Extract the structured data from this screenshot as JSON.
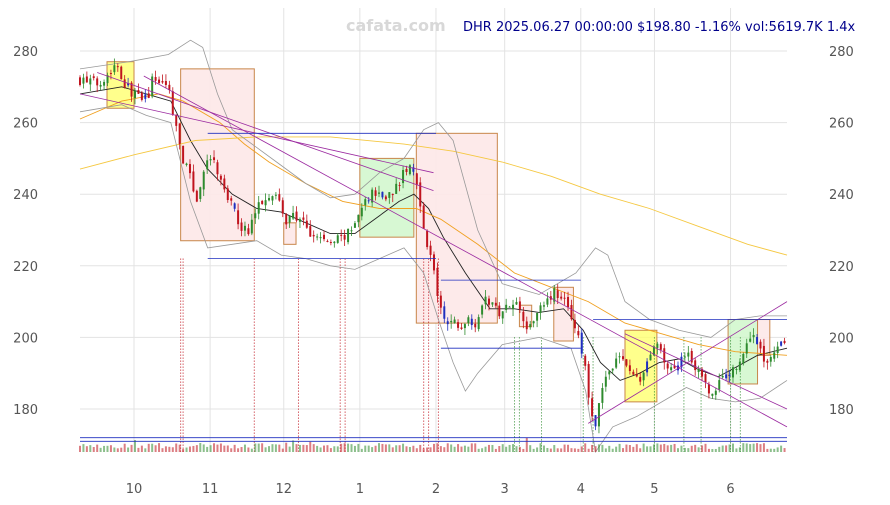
{
  "watermark": "cafata.com",
  "header": "DHR 2025.06.27 00:00:00 $198.80 -1.16% vol:5619.7K 1.4x",
  "colors": {
    "up": "#2e8b2e",
    "down": "#c0141e",
    "blue": "#1f2fbf",
    "sma_short": "#222222",
    "sma_mid": "#f0a020",
    "sma_long": "#f5c842",
    "bollinger": "#999999",
    "trend": "#9b2aa0",
    "box_red_fill": "#fde8e8",
    "box_red_edge": "#c8864a",
    "box_green_fill": "#c9f5c4",
    "box_yellow_fill": "#ffff66",
    "grid": "#e3e3e3"
  },
  "chart_data": {
    "type": "candlestick",
    "ylim": [
      168,
      292
    ],
    "y_ticks": [
      180,
      200,
      220,
      240,
      260,
      280
    ],
    "x_ticks": [
      {
        "label": "10",
        "day": 10
      },
      {
        "label": "11",
        "day": 41
      },
      {
        "label": "12",
        "day": 71
      },
      {
        "label": "1",
        "day": 102
      },
      {
        "label": "2",
        "day": 133
      },
      {
        "label": "3",
        "day": 161
      },
      {
        "label": "4",
        "day": 192
      },
      {
        "label": "5",
        "day": 222
      },
      {
        "label": "6",
        "day": 253
      }
    ],
    "x_range": [
      -12,
      276
    ],
    "price_path": [
      [
        -12,
        272
      ],
      [
        -5,
        271
      ],
      [
        0,
        274
      ],
      [
        3,
        277
      ],
      [
        6,
        271
      ],
      [
        10,
        268
      ],
      [
        13,
        266
      ],
      [
        16,
        268
      ],
      [
        18,
        273
      ],
      [
        21,
        271
      ],
      [
        24,
        270
      ],
      [
        26,
        263
      ],
      [
        29,
        252
      ],
      [
        33,
        244
      ],
      [
        36,
        238
      ],
      [
        38,
        246
      ],
      [
        41,
        250
      ],
      [
        43,
        248
      ],
      [
        46,
        242
      ],
      [
        49,
        238
      ],
      [
        52,
        233
      ],
      [
        56,
        229
      ],
      [
        60,
        236
      ],
      [
        64,
        240
      ],
      [
        67,
        241
      ],
      [
        69,
        238
      ],
      [
        72,
        232
      ],
      [
        75,
        234
      ],
      [
        78,
        233
      ],
      [
        82,
        228
      ],
      [
        86,
        228
      ],
      [
        90,
        226
      ],
      [
        94,
        228
      ],
      [
        98,
        229
      ],
      [
        101,
        233
      ],
      [
        104,
        238
      ],
      [
        108,
        241
      ],
      [
        112,
        239
      ],
      [
        117,
        242
      ],
      [
        120,
        246
      ],
      [
        123,
        248
      ],
      [
        126,
        241
      ],
      [
        129,
        226
      ],
      [
        132,
        220
      ],
      [
        134,
        210
      ],
      [
        137,
        203
      ],
      [
        140,
        205
      ],
      [
        143,
        202
      ],
      [
        146,
        206
      ],
      [
        149,
        204
      ],
      [
        153,
        211
      ],
      [
        157,
        208
      ],
      [
        160,
        207
      ],
      [
        164,
        211
      ],
      [
        168,
        207
      ],
      [
        171,
        202
      ],
      [
        175,
        209
      ],
      [
        178,
        211
      ],
      [
        182,
        213
      ],
      [
        186,
        209
      ],
      [
        189,
        205
      ],
      [
        192,
        197
      ],
      [
        194,
        190
      ],
      [
        196,
        180
      ],
      [
        198,
        174
      ],
      [
        200,
        184
      ],
      [
        203,
        190
      ],
      [
        206,
        194
      ],
      [
        210,
        193
      ],
      [
        213,
        190
      ],
      [
        216,
        187
      ],
      [
        219,
        193
      ],
      [
        222,
        198
      ],
      [
        225,
        195
      ],
      [
        228,
        190
      ],
      [
        232,
        194
      ],
      [
        236,
        196
      ],
      [
        240,
        190
      ],
      [
        243,
        186
      ],
      [
        246,
        184
      ],
      [
        249,
        188
      ],
      [
        252,
        190
      ],
      [
        256,
        192
      ],
      [
        259,
        197
      ],
      [
        262,
        202
      ],
      [
        265,
        196
      ],
      [
        268,
        193
      ],
      [
        271,
        197
      ],
      [
        274,
        200
      ],
      [
        276,
        198.8
      ]
    ],
    "series": [
      {
        "kind": "sma_short",
        "points": [
          [
            -12,
            268
          ],
          [
            5,
            270
          ],
          [
            15,
            268
          ],
          [
            25,
            266
          ],
          [
            33,
            255
          ],
          [
            40,
            247
          ],
          [
            50,
            240
          ],
          [
            60,
            236
          ],
          [
            70,
            235
          ],
          [
            80,
            232
          ],
          [
            90,
            229
          ],
          [
            100,
            229
          ],
          [
            110,
            234
          ],
          [
            118,
            238
          ],
          [
            124,
            240
          ],
          [
            130,
            236
          ],
          [
            136,
            228
          ],
          [
            145,
            218
          ],
          [
            155,
            208
          ],
          [
            165,
            208
          ],
          [
            175,
            207
          ],
          [
            185,
            208
          ],
          [
            193,
            202
          ],
          [
            200,
            193
          ],
          [
            208,
            188
          ],
          [
            216,
            190
          ],
          [
            224,
            193
          ],
          [
            232,
            194
          ],
          [
            240,
            191
          ],
          [
            248,
            189
          ],
          [
            256,
            192
          ],
          [
            264,
            195
          ],
          [
            276,
            197
          ]
        ]
      },
      {
        "kind": "sma_mid",
        "points": [
          [
            -12,
            261
          ],
          [
            5,
            266
          ],
          [
            20,
            268
          ],
          [
            30,
            266
          ],
          [
            45,
            260
          ],
          [
            55,
            254
          ],
          [
            65,
            249
          ],
          [
            80,
            243
          ],
          [
            95,
            238
          ],
          [
            110,
            236
          ],
          [
            125,
            236
          ],
          [
            135,
            233
          ],
          [
            150,
            226
          ],
          [
            165,
            218
          ],
          [
            180,
            214
          ],
          [
            195,
            210
          ],
          [
            210,
            204
          ],
          [
            225,
            201
          ],
          [
            240,
            198
          ],
          [
            255,
            196
          ],
          [
            276,
            195
          ]
        ]
      },
      {
        "kind": "sma_long",
        "points": [
          [
            -12,
            247
          ],
          [
            10,
            251
          ],
          [
            35,
            255
          ],
          [
            60,
            256
          ],
          [
            90,
            256
          ],
          [
            120,
            254
          ],
          [
            140,
            252
          ],
          [
            160,
            249
          ],
          [
            180,
            245
          ],
          [
            200,
            240
          ],
          [
            220,
            236
          ],
          [
            240,
            231
          ],
          [
            260,
            226
          ],
          [
            276,
            223
          ]
        ]
      },
      {
        "kind": "bollinger",
        "points": [
          [
            -12,
            275
          ],
          [
            8,
            277
          ],
          [
            24,
            279
          ],
          [
            33,
            283
          ],
          [
            38,
            281
          ],
          [
            44,
            268
          ],
          [
            50,
            258
          ],
          [
            60,
            253
          ],
          [
            70,
            248
          ],
          [
            80,
            243
          ],
          [
            90,
            239
          ],
          [
            100,
            240
          ],
          [
            110,
            246
          ],
          [
            120,
            250
          ],
          [
            128,
            258
          ],
          [
            134,
            260
          ],
          [
            140,
            255
          ],
          [
            150,
            230
          ],
          [
            160,
            215
          ],
          [
            175,
            212
          ],
          [
            190,
            218
          ],
          [
            198,
            225
          ],
          [
            203,
            223
          ],
          [
            210,
            210
          ],
          [
            220,
            205
          ],
          [
            232,
            202
          ],
          [
            245,
            200
          ],
          [
            255,
            205
          ],
          [
            265,
            206
          ],
          [
            276,
            206
          ]
        ]
      },
      {
        "kind": "bollinger",
        "points": [
          [
            -12,
            263
          ],
          [
            5,
            265
          ],
          [
            15,
            262
          ],
          [
            25,
            260
          ],
          [
            33,
            238
          ],
          [
            40,
            225
          ],
          [
            50,
            226
          ],
          [
            60,
            227
          ],
          [
            70,
            223
          ],
          [
            80,
            222
          ],
          [
            90,
            220
          ],
          [
            100,
            219
          ],
          [
            110,
            222
          ],
          [
            120,
            225
          ],
          [
            128,
            218
          ],
          [
            134,
            205
          ],
          [
            140,
            193
          ],
          [
            145,
            185
          ],
          [
            150,
            190
          ],
          [
            160,
            198
          ],
          [
            175,
            200
          ],
          [
            188,
            197
          ],
          [
            194,
            185
          ],
          [
            198,
            168
          ],
          [
            205,
            175
          ],
          [
            215,
            178
          ],
          [
            225,
            182
          ],
          [
            235,
            186
          ],
          [
            245,
            183
          ],
          [
            255,
            182
          ],
          [
            265,
            183
          ],
          [
            276,
            188
          ]
        ]
      }
    ],
    "trendlines": [
      {
        "kind": "trend",
        "points": [
          [
            -12,
            268
          ],
          [
            132,
            246
          ]
        ]
      },
      {
        "kind": "trend",
        "points": [
          [
            14,
            273
          ],
          [
            276,
            175
          ]
        ]
      },
      {
        "kind": "trend",
        "points": [
          [
            -5,
            274
          ],
          [
            132,
            241
          ]
        ]
      },
      {
        "kind": "trend",
        "points": [
          [
            195,
            176
          ],
          [
            276,
            210
          ]
        ]
      },
      {
        "kind": "trend",
        "points": [
          [
            210,
            201
          ],
          [
            276,
            180
          ]
        ]
      },
      {
        "kind": "blue",
        "points": [
          [
            40,
            257
          ],
          [
            133,
            257
          ]
        ]
      },
      {
        "kind": "blue",
        "points": [
          [
            40,
            222
          ],
          [
            133,
            222
          ]
        ]
      },
      {
        "kind": "blue",
        "points": [
          [
            135,
            216
          ],
          [
            192,
            216
          ]
        ]
      },
      {
        "kind": "blue",
        "points": [
          [
            135,
            197
          ],
          [
            192,
            197
          ]
        ]
      },
      {
        "kind": "blue",
        "points": [
          [
            197,
            205
          ],
          [
            276,
            205
          ]
        ]
      },
      {
        "kind": "blue",
        "points": [
          [
            -12,
            172
          ],
          [
            276,
            172
          ]
        ]
      },
      {
        "kind": "blue",
        "points": [
          [
            -12,
            171
          ],
          [
            276,
            171
          ]
        ]
      }
    ],
    "boxes": [
      {
        "kind": "yellow",
        "x0": -1,
        "x1": 10,
        "y0": 264,
        "y1": 277
      },
      {
        "kind": "red",
        "x0": 29,
        "x1": 59,
        "y0": 227,
        "y1": 275
      },
      {
        "kind": "red",
        "x0": 71,
        "x1": 76,
        "y0": 226,
        "y1": 232
      },
      {
        "kind": "green",
        "x0": 102,
        "x1": 124,
        "y0": 228,
        "y1": 250
      },
      {
        "kind": "red",
        "x0": 125,
        "x1": 158,
        "y0": 204,
        "y1": 257
      },
      {
        "kind": "red",
        "x0": 167,
        "x1": 172,
        "y0": 203,
        "y1": 209
      },
      {
        "kind": "red",
        "x0": 181,
        "x1": 189,
        "y0": 199,
        "y1": 214
      },
      {
        "kind": "yellow",
        "x0": 210,
        "x1": 223,
        "y0": 182,
        "y1": 202
      },
      {
        "kind": "green",
        "x0": 252,
        "x1": 264,
        "y0": 187,
        "y1": 205
      },
      {
        "kind": "red",
        "x0": 264,
        "x1": 269,
        "y0": 195,
        "y1": 205
      }
    ],
    "markers_red": [
      29,
      30,
      59,
      77,
      94,
      96,
      128,
      130,
      134
    ],
    "markers_green": [
      165,
      167,
      176,
      193,
      197,
      222,
      234,
      241,
      253,
      257
    ]
  }
}
